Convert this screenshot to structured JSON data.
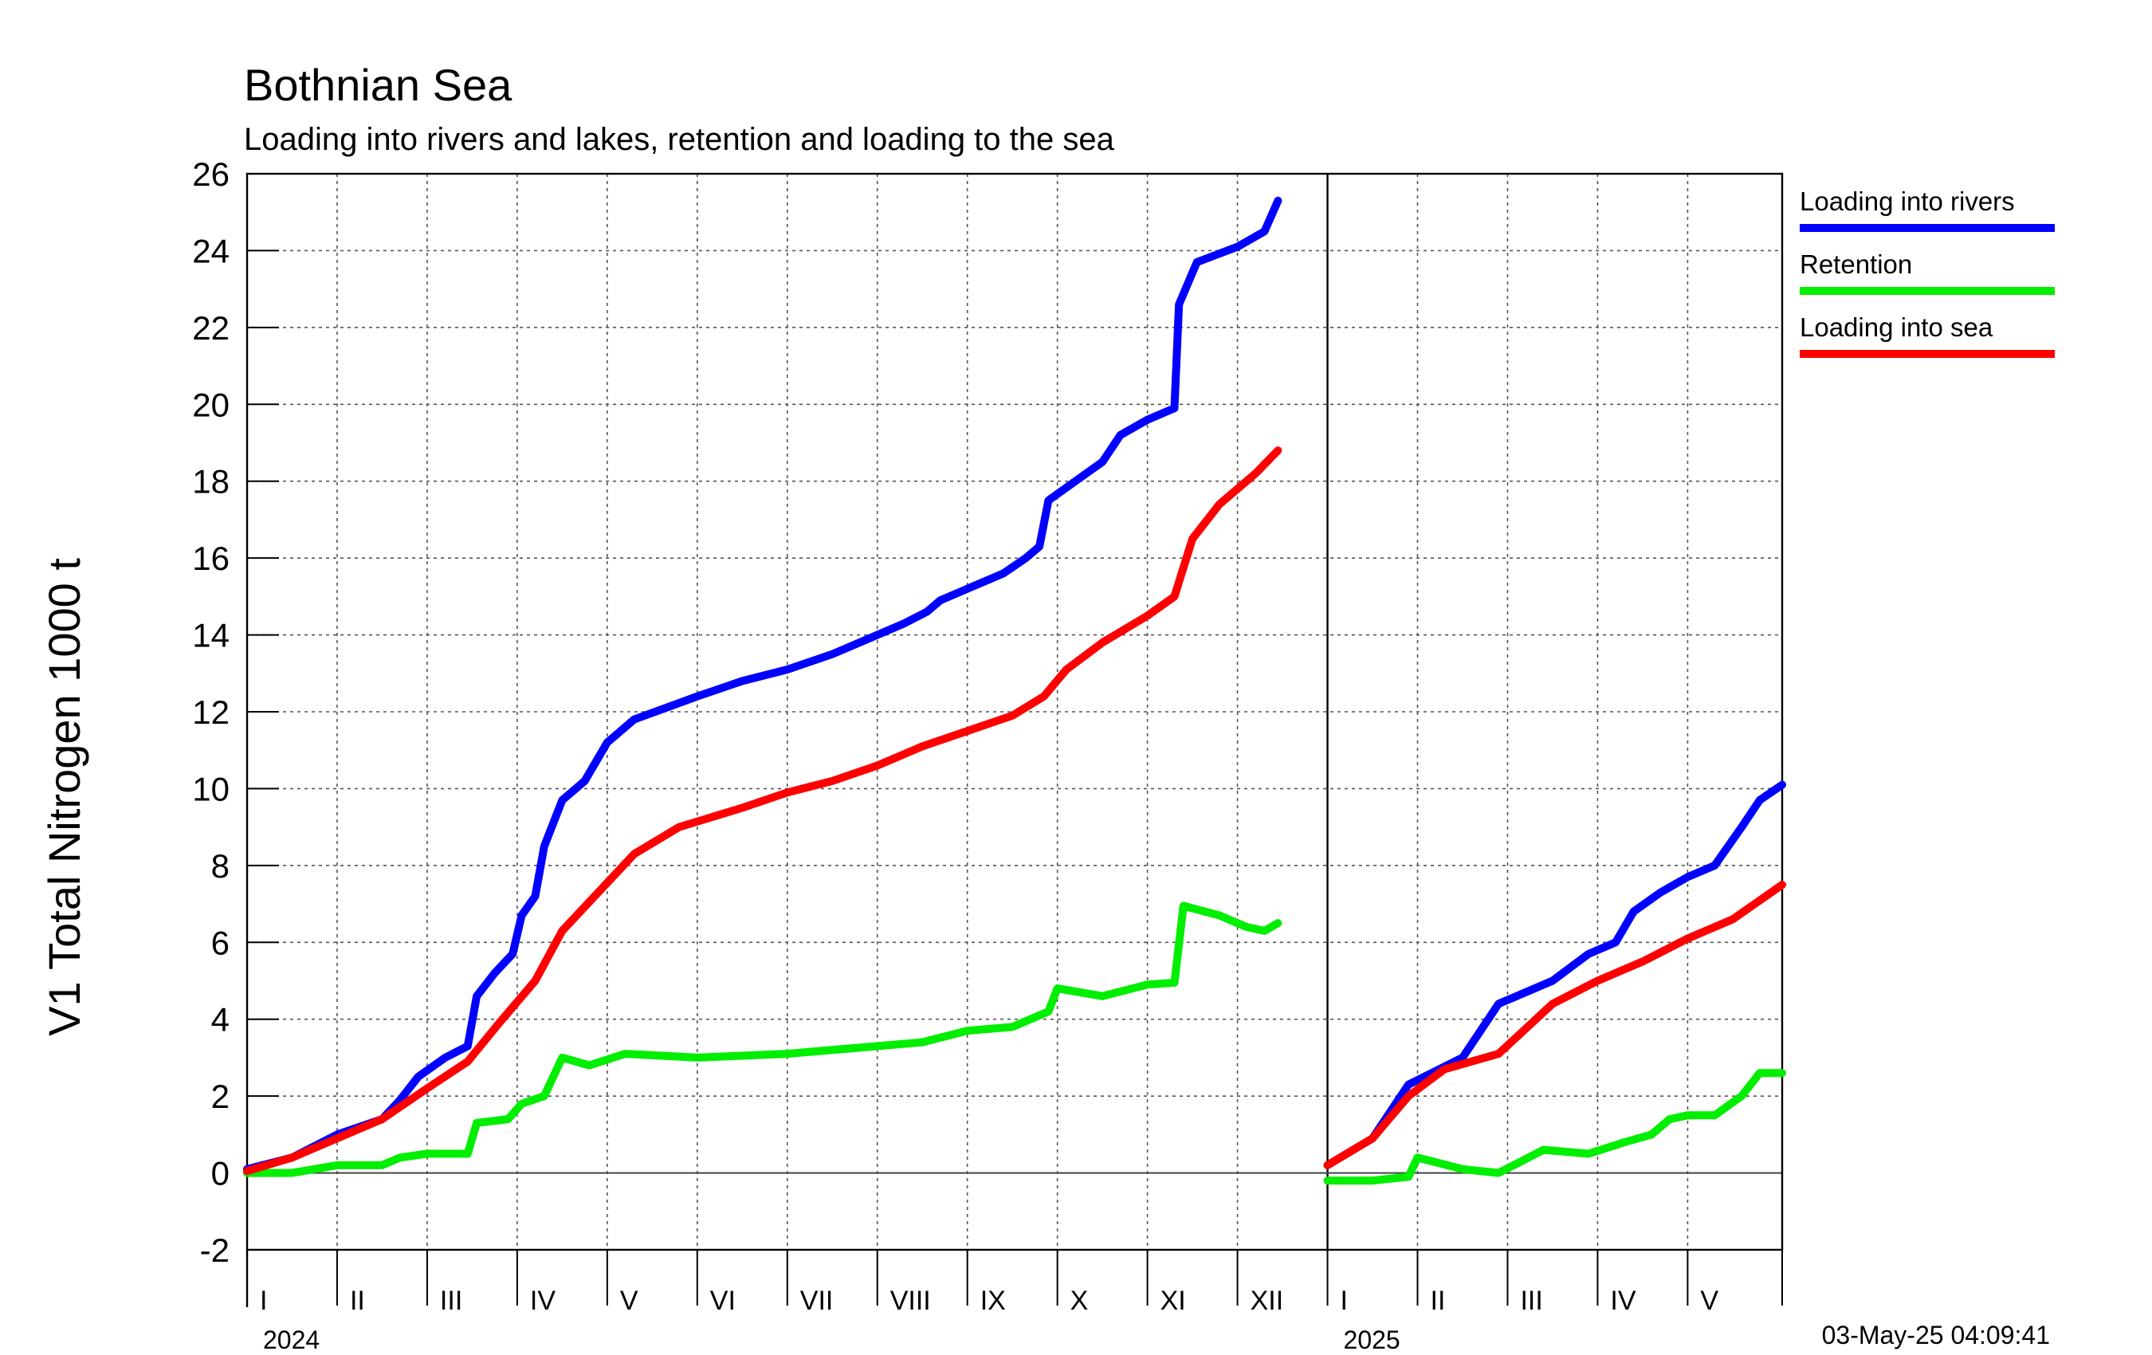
{
  "chart_data": {
    "type": "line",
    "title": "Bothnian Sea",
    "subtitle": "Loading into rivers and lakes, retention and loading to the sea",
    "ylabel": "V1 Total Nitrogen 1000 t",
    "xlabel": "",
    "ylim": [
      -2,
      26
    ],
    "yticks": [
      "-2",
      "0",
      "2",
      "4",
      "6",
      "8",
      "10",
      "12",
      "14",
      "16",
      "18",
      "20",
      "22",
      "24",
      "26"
    ],
    "grid": true,
    "legend_position": "top-right",
    "x_unit": "months since 1 Jan 2024",
    "xlim": [
      0,
      17.05
    ],
    "years": [
      {
        "label": "2024",
        "start": 0
      },
      {
        "label": "2025",
        "start": 12
      }
    ],
    "months": [
      {
        "label": "I",
        "start": 0
      },
      {
        "label": "II",
        "start": 1
      },
      {
        "label": "III",
        "start": 2
      },
      {
        "label": "IV",
        "start": 3
      },
      {
        "label": "V",
        "start": 4
      },
      {
        "label": "VI",
        "start": 5
      },
      {
        "label": "VII",
        "start": 6
      },
      {
        "label": "VIII",
        "start": 7
      },
      {
        "label": "IX",
        "start": 8
      },
      {
        "label": "X",
        "start": 9
      },
      {
        "label": "XI",
        "start": 10
      },
      {
        "label": "XII",
        "start": 11
      },
      {
        "label": "I",
        "start": 12
      },
      {
        "label": "II",
        "start": 13
      },
      {
        "label": "III",
        "start": 14
      },
      {
        "label": "IV",
        "start": 15
      },
      {
        "label": "V",
        "start": 16
      }
    ],
    "series": [
      {
        "name": "Loading into rivers",
        "color": "#0000ff",
        "segments": [
          [
            [
              0,
              0.1
            ],
            [
              0.5,
              0.4
            ],
            [
              1.0,
              1.0
            ],
            [
              1.5,
              1.4
            ],
            [
              1.7,
              1.9
            ],
            [
              1.9,
              2.5
            ],
            [
              2.2,
              3.0
            ],
            [
              2.45,
              3.3
            ],
            [
              2.55,
              4.6
            ],
            [
              2.75,
              5.2
            ],
            [
              2.95,
              5.7
            ],
            [
              3.05,
              6.7
            ],
            [
              3.2,
              7.2
            ],
            [
              3.3,
              8.5
            ],
            [
              3.5,
              9.7
            ],
            [
              3.75,
              10.2
            ],
            [
              4.0,
              11.2
            ],
            [
              4.3,
              11.8
            ],
            [
              5.0,
              12.4
            ],
            [
              5.5,
              12.8
            ],
            [
              6.0,
              13.1
            ],
            [
              6.5,
              13.5
            ],
            [
              7.0,
              14.0
            ],
            [
              7.3,
              14.3
            ],
            [
              7.55,
              14.6
            ],
            [
              7.7,
              14.9
            ],
            [
              8.0,
              15.2
            ],
            [
              8.4,
              15.6
            ],
            [
              8.65,
              16.0
            ],
            [
              8.8,
              16.3
            ],
            [
              8.9,
              17.5
            ],
            [
              9.2,
              18.0
            ],
            [
              9.5,
              18.5
            ],
            [
              9.7,
              19.2
            ],
            [
              10.0,
              19.6
            ],
            [
              10.3,
              19.9
            ],
            [
              10.35,
              22.6
            ],
            [
              10.55,
              23.7
            ],
            [
              11.0,
              24.1
            ],
            [
              11.3,
              24.5
            ],
            [
              11.45,
              25.3
            ]
          ],
          [
            [
              12.0,
              0.2
            ],
            [
              12.5,
              0.9
            ],
            [
              12.9,
              2.3
            ],
            [
              13.5,
              3.0
            ],
            [
              13.9,
              4.4
            ],
            [
              14.5,
              5.0
            ],
            [
              14.9,
              5.7
            ],
            [
              15.2,
              6.0
            ],
            [
              15.4,
              6.8
            ],
            [
              15.7,
              7.3
            ],
            [
              16.0,
              7.7
            ],
            [
              16.3,
              8.0
            ],
            [
              16.6,
              9.0
            ],
            [
              16.8,
              9.7
            ],
            [
              17.05,
              10.1
            ]
          ]
        ]
      },
      {
        "name": "Retention",
        "color": "#00ee00",
        "segments": [
          [
            [
              0,
              0.0
            ],
            [
              0.5,
              0.0
            ],
            [
              1.0,
              0.2
            ],
            [
              1.5,
              0.2
            ],
            [
              1.7,
              0.4
            ],
            [
              2.0,
              0.5
            ],
            [
              2.45,
              0.5
            ],
            [
              2.55,
              1.3
            ],
            [
              2.9,
              1.4
            ],
            [
              3.05,
              1.8
            ],
            [
              3.3,
              2.0
            ],
            [
              3.5,
              3.0
            ],
            [
              3.8,
              2.8
            ],
            [
              4.2,
              3.1
            ],
            [
              5.0,
              3.0
            ],
            [
              6.0,
              3.1
            ],
            [
              7.0,
              3.3
            ],
            [
              7.5,
              3.4
            ],
            [
              8.0,
              3.7
            ],
            [
              8.5,
              3.8
            ],
            [
              8.9,
              4.2
            ],
            [
              9.0,
              4.8
            ],
            [
              9.5,
              4.6
            ],
            [
              10.0,
              4.9
            ],
            [
              10.3,
              4.95
            ],
            [
              10.4,
              6.95
            ],
            [
              10.8,
              6.7
            ],
            [
              11.1,
              6.4
            ],
            [
              11.3,
              6.3
            ],
            [
              11.45,
              6.5
            ]
          ],
          [
            [
              12.0,
              -0.2
            ],
            [
              12.5,
              -0.2
            ],
            [
              12.9,
              -0.1
            ],
            [
              13.0,
              0.4
            ],
            [
              13.5,
              0.1
            ],
            [
              13.9,
              0.0
            ],
            [
              14.4,
              0.6
            ],
            [
              14.9,
              0.5
            ],
            [
              15.3,
              0.8
            ],
            [
              15.6,
              1.0
            ],
            [
              15.8,
              1.4
            ],
            [
              16.0,
              1.5
            ],
            [
              16.3,
              1.5
            ],
            [
              16.6,
              2.0
            ],
            [
              16.8,
              2.6
            ],
            [
              17.05,
              2.6
            ]
          ]
        ]
      },
      {
        "name": "Loading into sea",
        "color": "#ff0000",
        "segments": [
          [
            [
              0,
              0.05
            ],
            [
              0.5,
              0.4
            ],
            [
              1.0,
              0.9
            ],
            [
              1.5,
              1.4
            ],
            [
              2.0,
              2.2
            ],
            [
              2.45,
              2.9
            ],
            [
              2.8,
              3.9
            ],
            [
              3.2,
              5.0
            ],
            [
              3.5,
              6.3
            ],
            [
              3.9,
              7.3
            ],
            [
              4.3,
              8.3
            ],
            [
              4.8,
              9.0
            ],
            [
              5.5,
              9.5
            ],
            [
              6.0,
              9.9
            ],
            [
              6.5,
              10.2
            ],
            [
              7.0,
              10.6
            ],
            [
              7.5,
              11.1
            ],
            [
              8.0,
              11.5
            ],
            [
              8.5,
              11.9
            ],
            [
              8.85,
              12.4
            ],
            [
              9.1,
              13.1
            ],
            [
              9.5,
              13.8
            ],
            [
              10.0,
              14.5
            ],
            [
              10.3,
              15.0
            ],
            [
              10.5,
              16.5
            ],
            [
              10.8,
              17.4
            ],
            [
              11.2,
              18.2
            ],
            [
              11.45,
              18.8
            ]
          ],
          [
            [
              12.0,
              0.2
            ],
            [
              12.5,
              0.9
            ],
            [
              12.9,
              2.0
            ],
            [
              13.3,
              2.7
            ],
            [
              13.9,
              3.1
            ],
            [
              14.5,
              4.4
            ],
            [
              15.0,
              5.0
            ],
            [
              15.5,
              5.5
            ],
            [
              16.0,
              6.1
            ],
            [
              16.5,
              6.6
            ],
            [
              17.05,
              7.5
            ]
          ]
        ]
      }
    ]
  },
  "timestamp": "03-May-25 04:09:41"
}
